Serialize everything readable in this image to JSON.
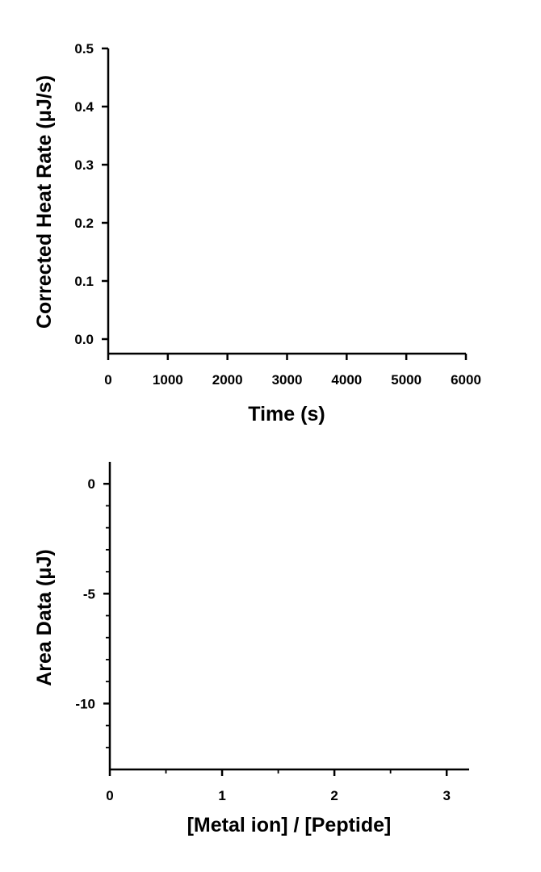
{
  "chart_data": [
    {
      "type": "line",
      "xlabel": "Time (s)",
      "ylabel": "Corrected Heat Rate (μJ/s)",
      "xlim": [
        0,
        6000
      ],
      "ylim": [
        -0.025,
        0.5
      ],
      "xticks": [
        0,
        1000,
        2000,
        3000,
        4000,
        5000,
        6000
      ],
      "xtick_labels": [
        "0",
        "1000",
        "2000",
        "3000",
        "4000",
        "5000",
        "6000"
      ],
      "yticks": [
        0.0,
        0.1,
        0.2,
        0.3,
        0.4,
        0.5
      ],
      "ytick_labels": [
        "0.0",
        "0.1",
        "0.2",
        "0.3",
        "0.4",
        "0.5"
      ],
      "grid": false,
      "series": []
    },
    {
      "type": "scatter",
      "xlabel": "[Metal ion] / [Peptide]",
      "ylabel": "Area Data (μJ)",
      "xlim": [
        0,
        3.2
      ],
      "ylim": [
        -13,
        1
      ],
      "xticks": [
        0,
        1,
        2,
        3
      ],
      "xtick_labels": [
        "0",
        "1",
        "2",
        "3"
      ],
      "x_minor_ticks": [
        0.5,
        1.5,
        2.5
      ],
      "yticks": [
        0,
        -5,
        -10
      ],
      "ytick_labels": [
        "0",
        "-5",
        "-10"
      ],
      "y_minor_ticks": [
        -1,
        -2,
        -3,
        -4,
        -6,
        -7,
        -8,
        -9,
        -11,
        -12
      ],
      "grid": false,
      "series": []
    }
  ]
}
